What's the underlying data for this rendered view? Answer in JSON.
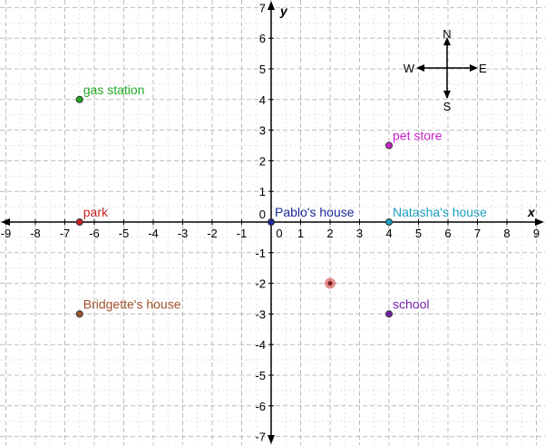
{
  "chart_data": {
    "type": "scatter",
    "xlabel": "x",
    "ylabel": "y",
    "xlim": [
      -9,
      9
    ],
    "ylim": [
      -7,
      7
    ],
    "grid": true,
    "x_ticks": [
      "-9",
      "-8",
      "-7",
      "-6",
      "-5",
      "-4",
      "-3",
      "-2",
      "-1",
      "0",
      "1",
      "2",
      "3",
      "4",
      "5",
      "6",
      "7",
      "8",
      "9"
    ],
    "y_ticks": [
      "7",
      "6",
      "5",
      "4",
      "3",
      "2",
      "1",
      "0",
      "-1",
      "-2",
      "-3",
      "-4",
      "-5",
      "-6",
      "-7"
    ],
    "points": [
      {
        "label": "gas station",
        "x": -6.5,
        "y": 4,
        "color": "#22aa22"
      },
      {
        "label": "park",
        "x": -6.5,
        "y": 0,
        "color": "#cc2222"
      },
      {
        "label": "Bridgette's house",
        "x": -6.5,
        "y": -3,
        "color": "#a0522d"
      },
      {
        "label": "Pablo's house",
        "x": 0,
        "y": 0,
        "color": "#1a2a99"
      },
      {
        "label": "pet store",
        "x": 4,
        "y": 2.5,
        "color": "#cc22cc"
      },
      {
        "label": "Natasha's house",
        "x": 4,
        "y": 0,
        "color": "#1aa0c0"
      },
      {
        "label": "school",
        "x": 4,
        "y": -3,
        "color": "#7722aa"
      }
    ],
    "marker": {
      "x": 2,
      "y": -2,
      "color": "#cc3333"
    }
  },
  "compass": {
    "north": "N",
    "south": "S",
    "east": "E",
    "west": "W"
  }
}
